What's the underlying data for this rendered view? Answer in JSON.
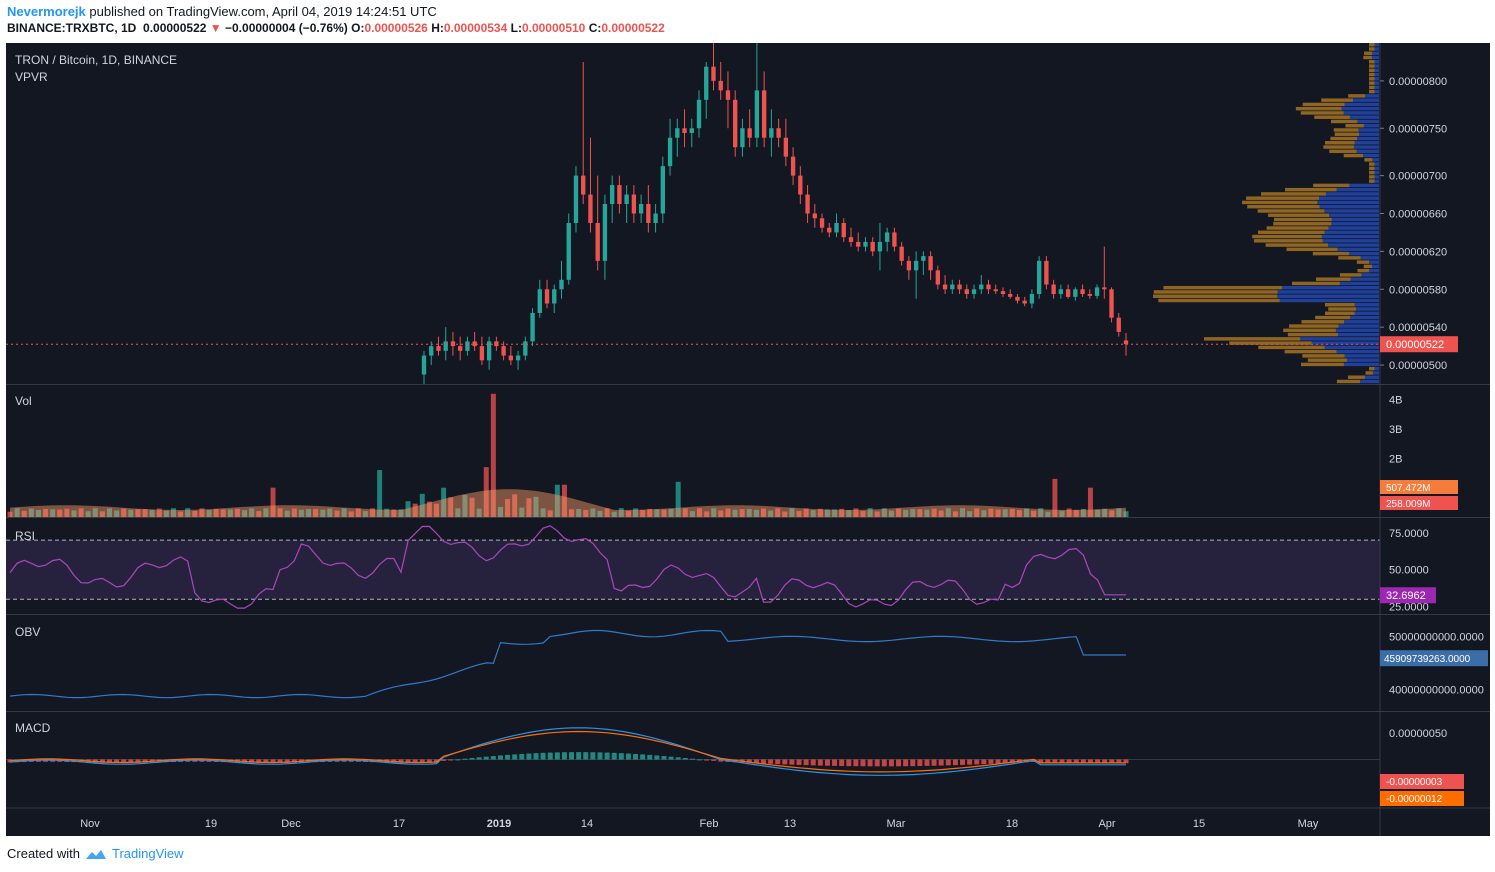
{
  "header": {
    "author": "Nevermorejk",
    "published_text": "published on TradingView.com, April 04, 2019 14:24:51 UTC",
    "symbol_line": "BINANCE:TRXBTC, 1D",
    "last_price": "0.00000522",
    "change": "−0.00000004 (−0.76%)",
    "open_label": "O:",
    "open": "0.00000526",
    "high_label": "H:",
    "high": "0.00000534",
    "low_label": "L:",
    "low": "0.00000510",
    "close_label": "C:",
    "close": "0.00000522"
  },
  "footer": {
    "created_with": "Created with",
    "brand": "TradingView"
  },
  "colors": {
    "background": "#131722",
    "up": "#26a69a",
    "down": "#ef5350",
    "vpvr_up": "#2962ff",
    "vpvr_down": "#f5a623",
    "rsi": "#ab47bc",
    "obv": "#3179c9",
    "macd": "#2196f3",
    "signal": "#ff6d00"
  },
  "chart_data": [
    {
      "type": "candlestick",
      "pane": "price",
      "title": "TRON / Bitcoin, 1D, BINANCE",
      "indicator": "VPVR",
      "x_ticks": [
        "Nov",
        "19",
        "Dec",
        "17",
        "2019",
        "14",
        "Feb",
        "13",
        "Mar",
        "18",
        "Apr",
        "15",
        "May"
      ],
      "y_ticks": [
        "0.00000800",
        "0.00000750",
        "0.00000700",
        "0.00000660",
        "0.00000620",
        "0.00000580",
        "0.00000540",
        "0.00000500"
      ],
      "last_label": "0.00000522",
      "ylim": [
        4.8e-06,
        8.4e-06
      ],
      "candles": [
        [
          4.9,
          5.15,
          4.8,
          5.1
        ],
        [
          5.1,
          5.25,
          5.0,
          5.2
        ],
        [
          5.2,
          5.3,
          5.1,
          5.15
        ],
        [
          5.15,
          5.4,
          5.05,
          5.25
        ],
        [
          5.25,
          5.35,
          5.1,
          5.2
        ],
        [
          5.2,
          5.3,
          5.05,
          5.15
        ],
        [
          5.15,
          5.3,
          5.1,
          5.25
        ],
        [
          5.25,
          5.35,
          5.15,
          5.2
        ],
        [
          5.2,
          5.3,
          5.0,
          5.05
        ],
        [
          5.05,
          5.3,
          4.95,
          5.25
        ],
        [
          5.25,
          5.3,
          5.15,
          5.2
        ],
        [
          5.2,
          5.25,
          5.05,
          5.1
        ],
        [
          5.1,
          5.2,
          5.0,
          5.05
        ],
        [
          5.05,
          5.15,
          4.95,
          5.1
        ],
        [
          5.1,
          5.3,
          5.05,
          5.25
        ],
        [
          5.25,
          5.6,
          5.2,
          5.55
        ],
        [
          5.55,
          5.9,
          5.5,
          5.8
        ],
        [
          5.8,
          5.9,
          5.6,
          5.65
        ],
        [
          5.65,
          5.85,
          5.55,
          5.8
        ],
        [
          5.8,
          6.1,
          5.7,
          5.9
        ],
        [
          5.9,
          6.6,
          5.85,
          6.5
        ],
        [
          6.5,
          7.1,
          6.4,
          7.0
        ],
        [
          7.0,
          8.2,
          6.7,
          6.8
        ],
        [
          6.8,
          7.4,
          6.4,
          6.5
        ],
        [
          6.5,
          7.0,
          6.0,
          6.1
        ],
        [
          6.1,
          6.8,
          5.9,
          6.7
        ],
        [
          6.7,
          7.0,
          6.5,
          6.9
        ],
        [
          6.9,
          7.0,
          6.6,
          6.7
        ],
        [
          6.7,
          6.9,
          6.5,
          6.8
        ],
        [
          6.8,
          6.9,
          6.5,
          6.6
        ],
        [
          6.6,
          6.8,
          6.5,
          6.7
        ],
        [
          6.7,
          6.9,
          6.4,
          6.5
        ],
        [
          6.5,
          6.7,
          6.4,
          6.6
        ],
        [
          6.6,
          7.2,
          6.5,
          7.1
        ],
        [
          7.1,
          7.6,
          7.0,
          7.4
        ],
        [
          7.4,
          7.6,
          7.2,
          7.5
        ],
        [
          7.5,
          7.7,
          7.3,
          7.45
        ],
        [
          7.45,
          7.6,
          7.3,
          7.5
        ],
        [
          7.5,
          7.9,
          7.4,
          7.8
        ],
        [
          7.8,
          8.2,
          7.6,
          8.15
        ],
        [
          8.15,
          8.4,
          7.9,
          8.0
        ],
        [
          8.0,
          8.2,
          7.8,
          7.9
        ],
        [
          7.9,
          8.1,
          7.5,
          7.8
        ],
        [
          7.8,
          7.9,
          7.2,
          7.3
        ],
        [
          7.3,
          7.6,
          7.2,
          7.5
        ],
        [
          7.5,
          7.7,
          7.3,
          7.4
        ],
        [
          7.4,
          8.4,
          7.3,
          7.9
        ],
        [
          7.9,
          8.1,
          7.3,
          7.4
        ],
        [
          7.4,
          7.7,
          7.2,
          7.5
        ],
        [
          7.5,
          7.6,
          7.3,
          7.4
        ],
        [
          7.4,
          7.6,
          7.1,
          7.2
        ],
        [
          7.2,
          7.3,
          6.9,
          7.0
        ],
        [
          7.0,
          7.1,
          6.7,
          6.8
        ],
        [
          6.8,
          6.9,
          6.5,
          6.6
        ],
        [
          6.6,
          6.7,
          6.45,
          6.55
        ],
        [
          6.55,
          6.6,
          6.4,
          6.45
        ],
        [
          6.45,
          6.5,
          6.35,
          6.4
        ],
        [
          6.4,
          6.6,
          6.35,
          6.5
        ],
        [
          6.5,
          6.55,
          6.3,
          6.35
        ],
        [
          6.35,
          6.45,
          6.25,
          6.3
        ],
        [
          6.3,
          6.4,
          6.2,
          6.25
        ],
        [
          6.25,
          6.35,
          6.2,
          6.3
        ],
        [
          6.3,
          6.35,
          6.15,
          6.2
        ],
        [
          6.2,
          6.5,
          6.0,
          6.3
        ],
        [
          6.3,
          6.45,
          6.2,
          6.4
        ],
        [
          6.4,
          6.45,
          6.2,
          6.25
        ],
        [
          6.25,
          6.3,
          6.05,
          6.1
        ],
        [
          6.1,
          6.15,
          5.9,
          6.0
        ],
        [
          6.0,
          6.2,
          5.7,
          6.1
        ],
        [
          6.1,
          6.2,
          5.95,
          6.15
        ],
        [
          6.15,
          6.2,
          5.9,
          6.0
        ],
        [
          6.0,
          6.05,
          5.8,
          5.85
        ],
        [
          5.85,
          5.95,
          5.75,
          5.8
        ],
        [
          5.8,
          5.9,
          5.75,
          5.85
        ],
        [
          5.85,
          5.9,
          5.75,
          5.8
        ],
        [
          5.8,
          5.85,
          5.7,
          5.75
        ],
        [
          5.75,
          5.85,
          5.7,
          5.8
        ],
        [
          5.8,
          5.95,
          5.75,
          5.85
        ],
        [
          5.85,
          5.9,
          5.75,
          5.8
        ],
        [
          5.8,
          5.85,
          5.75,
          5.78
        ],
        [
          5.78,
          5.82,
          5.72,
          5.75
        ],
        [
          5.75,
          5.8,
          5.7,
          5.72
        ],
        [
          5.72,
          5.75,
          5.65,
          5.68
        ],
        [
          5.68,
          5.72,
          5.62,
          5.65
        ],
        [
          5.65,
          5.8,
          5.6,
          5.75
        ],
        [
          5.75,
          6.15,
          5.7,
          6.1
        ],
        [
          6.1,
          6.15,
          5.8,
          5.85
        ],
        [
          5.85,
          5.9,
          5.7,
          5.75
        ],
        [
          5.75,
          5.85,
          5.7,
          5.8
        ],
        [
          5.8,
          5.85,
          5.7,
          5.72
        ],
        [
          5.72,
          5.82,
          5.68,
          5.8
        ],
        [
          5.8,
          5.85,
          5.72,
          5.75
        ],
        [
          5.75,
          5.8,
          5.7,
          5.73
        ],
        [
          5.73,
          5.85,
          5.7,
          5.82
        ],
        [
          5.82,
          6.25,
          5.7,
          5.8
        ],
        [
          5.8,
          5.82,
          5.45,
          5.5
        ],
        [
          5.5,
          5.55,
          5.3,
          5.35
        ],
        [
          5.26,
          5.34,
          5.1,
          5.22
        ]
      ],
      "volume": {
        "y_ticks": [
          "4B",
          "3B",
          "2B"
        ],
        "ylim": [
          0,
          4.5
        ],
        "labels": [
          "507.472M",
          "258.009M"
        ],
        "title": "Vol"
      },
      "rsi": {
        "title": "RSI",
        "y_ticks": [
          "75.0000",
          "50.0000",
          "25.0000"
        ],
        "ylim": [
          20,
          85
        ],
        "bands": [
          70,
          30
        ],
        "last_label": "32.6962"
      },
      "obv": {
        "title": "OBV",
        "y_ticks": [
          "50000000000.0000",
          "40000000000.0000"
        ],
        "last_label": "45909739263.0000"
      },
      "macd": {
        "title": "MACD",
        "y_ticks": [
          "0.00000050"
        ],
        "labels": [
          "-0.00000003",
          "-0.00000012"
        ]
      }
    }
  ]
}
